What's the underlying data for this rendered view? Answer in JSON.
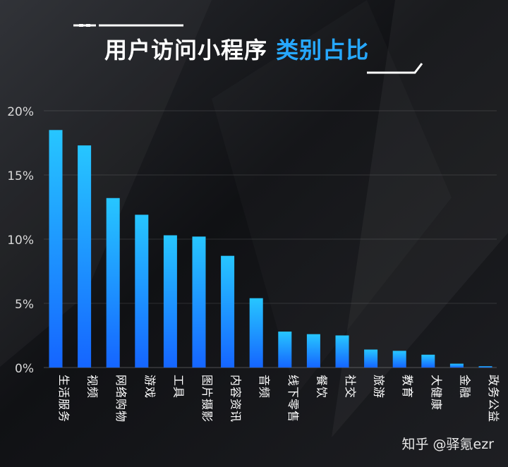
{
  "header": {
    "title_main": "用户访问小程序",
    "title_accent": "类别占比"
  },
  "watermark": "知乎 @驿氪ezr",
  "colors": {
    "background": "#0b0c0f",
    "bar_top": "#27c6ff",
    "bar_bottom": "#1565ff",
    "accent": "#27a8ff",
    "text": "#ffffff"
  },
  "chart_data": {
    "type": "bar",
    "title": "用户访问小程序类别占比",
    "categories": [
      "生活服务",
      "视频",
      "网络购物",
      "游戏",
      "工具",
      "图片摄影",
      "内容资讯",
      "音频",
      "线下零售",
      "餐饮",
      "社交",
      "旅游",
      "教育",
      "大健康",
      "金融",
      "政务公益"
    ],
    "values": [
      18.5,
      17.3,
      13.2,
      11.9,
      10.3,
      10.2,
      8.7,
      5.4,
      2.8,
      2.6,
      2.5,
      1.4,
      1.3,
      1.0,
      0.3,
      0.1
    ],
    "ylim": [
      0,
      20
    ],
    "yticks": [
      "0%",
      "5%",
      "10%",
      "15%",
      "20%"
    ],
    "xlabel": "",
    "ylabel": "",
    "grid": true,
    "legend": "none"
  }
}
